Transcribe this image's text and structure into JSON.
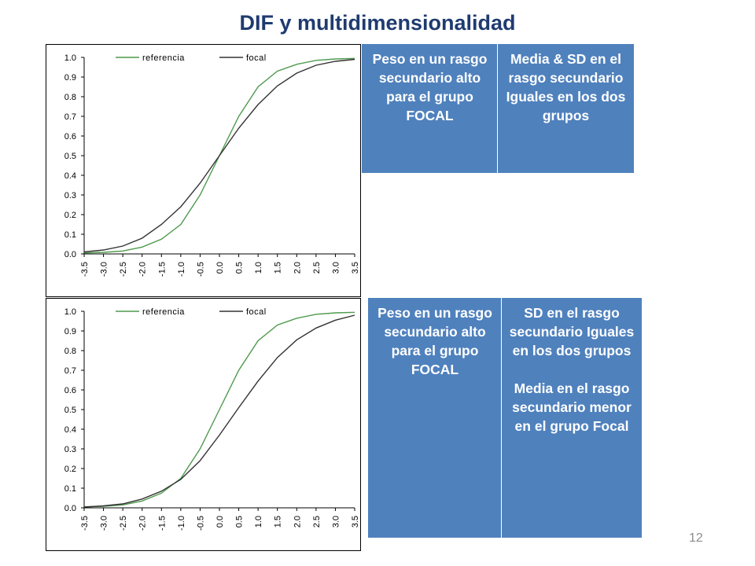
{
  "slide": {
    "title": "DIF y multidimensionalidad",
    "page_number": "12"
  },
  "boxes": {
    "top": {
      "left_text": "Peso en un rasgo secundario alto para el grupo FOCAL",
      "right_text": "Media & SD en el rasgo secundario Iguales en los dos grupos"
    },
    "bottom": {
      "left_text": "Peso en un rasgo secundario alto para el grupo FOCAL",
      "right_text_1": "SD en el rasgo secundario Iguales en los dos grupos",
      "right_text_2": "Media en el rasgo secundario menor en el grupo Focal"
    },
    "fill_color": "#4F81BD"
  },
  "chart_data": [
    {
      "type": "line",
      "x": [
        -3.5,
        -3.0,
        -2.5,
        -2.0,
        -1.5,
        -1.0,
        -0.5,
        0.0,
        0.5,
        1.0,
        1.5,
        2.0,
        2.5,
        3.0,
        3.5
      ],
      "x_tick_labels": [
        "-3.5",
        "-3.0",
        "-2.5",
        "-2.0",
        "-1.5",
        "-1.0",
        "-0.5",
        "0.0",
        "0.5",
        "1.0",
        "1.5",
        "2.0",
        "2.5",
        "3.0",
        "3.5"
      ],
      "y_tick_labels": [
        "0.0",
        "0.1",
        "0.2",
        "0.3",
        "0.4",
        "0.5",
        "0.6",
        "0.7",
        "0.8",
        "0.9",
        "1.0"
      ],
      "ylim": [
        0,
        1
      ],
      "grid": false,
      "legend_position": "top",
      "series": [
        {
          "name": "referencia",
          "color": "#4E9A4E",
          "values": [
            0.005,
            0.008,
            0.015,
            0.035,
            0.075,
            0.15,
            0.3,
            0.5,
            0.7,
            0.85,
            0.93,
            0.965,
            0.985,
            0.992,
            0.995
          ]
        },
        {
          "name": "focal",
          "color": "#333333",
          "values": [
            0.01,
            0.02,
            0.04,
            0.08,
            0.15,
            0.24,
            0.36,
            0.5,
            0.64,
            0.76,
            0.855,
            0.92,
            0.96,
            0.98,
            0.99
          ]
        }
      ]
    },
    {
      "type": "line",
      "x": [
        -3.5,
        -3.0,
        -2.5,
        -2.0,
        -1.5,
        -1.0,
        -0.5,
        0.0,
        0.5,
        1.0,
        1.5,
        2.0,
        2.5,
        3.0,
        3.5
      ],
      "x_tick_labels": [
        "-3.5",
        "-3.0",
        "-2.5",
        "-2.0",
        "-1.5",
        "-1.0",
        "-0.5",
        "0.0",
        "0.5",
        "1.0",
        "1.5",
        "2.0",
        "2.5",
        "3.0",
        "3.5"
      ],
      "y_tick_labels": [
        "0.0",
        "0.1",
        "0.2",
        "0.3",
        "0.4",
        "0.5",
        "0.6",
        "0.7",
        "0.8",
        "0.9",
        "1.0"
      ],
      "ylim": [
        0,
        1
      ],
      "grid": false,
      "legend_position": "top",
      "series": [
        {
          "name": "referencia",
          "color": "#4E9A4E",
          "values": [
            0.005,
            0.008,
            0.015,
            0.035,
            0.075,
            0.15,
            0.3,
            0.5,
            0.7,
            0.85,
            0.93,
            0.965,
            0.985,
            0.992,
            0.995
          ]
        },
        {
          "name": "focal",
          "color": "#333333",
          "values": [
            0.004,
            0.01,
            0.02,
            0.045,
            0.085,
            0.145,
            0.24,
            0.37,
            0.51,
            0.645,
            0.765,
            0.855,
            0.915,
            0.955,
            0.98
          ]
        }
      ]
    }
  ]
}
